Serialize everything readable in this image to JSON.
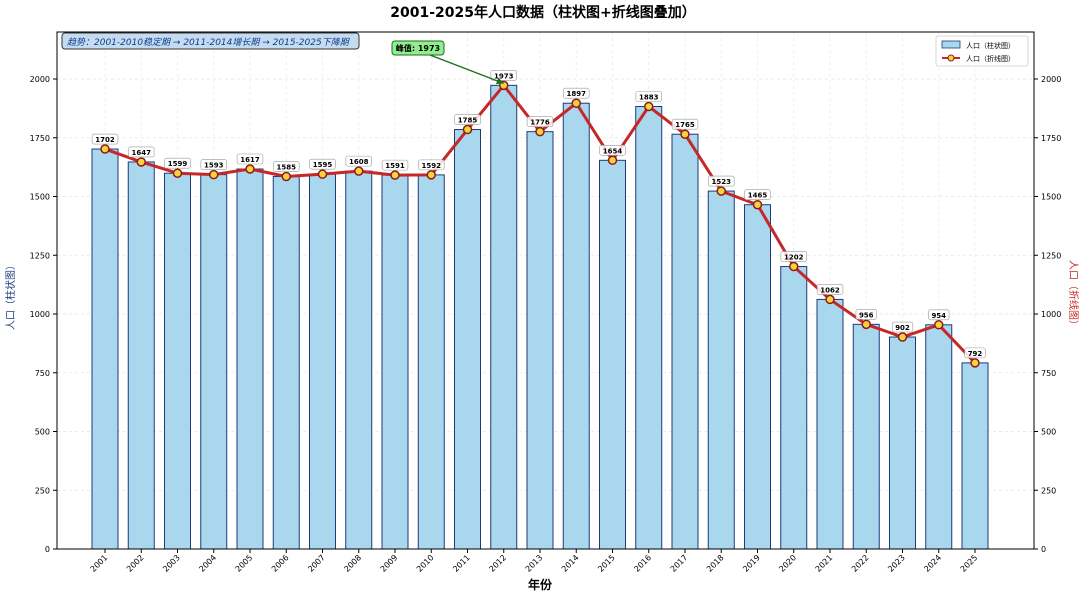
{
  "chart_data": {
    "type": "bar",
    "title": "2001-2025年人口数据（柱状图+折线图叠加）",
    "xlabel": "年份",
    "ylabel_left": "人口（柱状图）",
    "ylabel_right": "人口（折线图）",
    "categories": [
      "2001",
      "2002",
      "2003",
      "2004",
      "2005",
      "2006",
      "2007",
      "2008",
      "2009",
      "2010",
      "2011",
      "2012",
      "2013",
      "2014",
      "2015",
      "2016",
      "2017",
      "2018",
      "2019",
      "2020",
      "2021",
      "2022",
      "2023",
      "2024",
      "2025"
    ],
    "series": [
      {
        "name": "人口（柱状图）",
        "kind": "bar",
        "values": [
          1702,
          1647,
          1599,
          1593,
          1617,
          1585,
          1595,
          1608,
          1591,
          1592,
          1785,
          1973,
          1776,
          1897,
          1654,
          1883,
          1765,
          1523,
          1465,
          1202,
          1062,
          956,
          902,
          954,
          792
        ]
      },
      {
        "name": "人口（折线图）",
        "kind": "line",
        "values": [
          1702,
          1647,
          1599,
          1593,
          1617,
          1585,
          1595,
          1608,
          1591,
          1592,
          1785,
          1973,
          1776,
          1897,
          1654,
          1883,
          1765,
          1523,
          1465,
          1202,
          1062,
          956,
          902,
          954,
          792
        ]
      }
    ],
    "data_labels": [
      "1702",
      "1647",
      "1599",
      "1593",
      "1617",
      "1585",
      "1595",
      "1608",
      "1591",
      "1592",
      "1785",
      "1973",
      "1776",
      "1897",
      "1654",
      "1883",
      "1765",
      "1523",
      "1465",
      "1202",
      "1062",
      "956",
      "902",
      "954",
      "792"
    ],
    "ylim": [
      0,
      2200
    ],
    "yticks": [
      0,
      250,
      500,
      750,
      1000,
      1250,
      1500,
      1750,
      2000
    ],
    "grid": true,
    "legend_position": "top-right",
    "annotations": {
      "trend_text": "趋势：2001-2010稳定期 → 2011-2014增长期 → 2015-2025下降期",
      "peak_label": "峰值: 1973",
      "peak_year": "2012",
      "peak_value": 1973
    },
    "colors": {
      "bar_fill": "#a9d7ee",
      "bar_edge": "#1f3a7a",
      "line": "#c62828",
      "marker_fill": "#f7d43c",
      "marker_edge": "#8b1a1a",
      "trend_box_fill": "#c5dcf0",
      "trend_text": "#0d3b8c",
      "peak_box_fill": "#90ee90",
      "peak_arrow": "#1b6e1b",
      "right_axis_label": "#c62828"
    }
  }
}
